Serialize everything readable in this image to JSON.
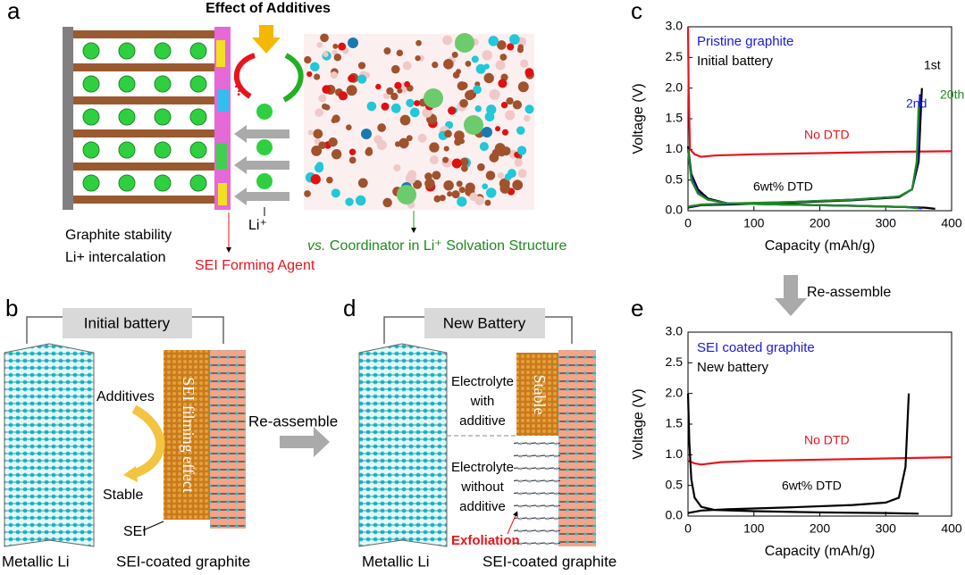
{
  "chart_data": [
    {
      "type": "line",
      "panel": "c",
      "xlabel": "Capacity (mAh/g)",
      "ylabel": "Voltage (V)",
      "xlim": [
        0,
        400
      ],
      "ylim": [
        0,
        3
      ],
      "xticks": [
        0,
        100,
        200,
        300,
        400
      ],
      "yticks": [
        {
          "value": 0,
          "label": "0.0"
        },
        0.5,
        {
          "value": 1,
          "label": "1.0"
        },
        1.5,
        {
          "value": 2,
          "label": "2.0"
        },
        2.5,
        {
          "value": 3,
          "label": "3.0"
        }
      ],
      "legend_text": [
        {
          "text": "Pristine graphite",
          "color": "#1a1adc"
        },
        {
          "text": "Initial battery",
          "color": "#000000"
        }
      ],
      "annotations": [
        "6wt% DTD"
      ],
      "series": [
        {
          "name": "No DTD",
          "color": "#e8141c",
          "x": [
            0,
            1,
            3,
            10,
            20,
            40,
            100,
            200,
            300,
            400
          ],
          "values": [
            3.0,
            2.0,
            1.0,
            0.92,
            0.88,
            0.9,
            0.92,
            0.94,
            0.96,
            0.97
          ]
        },
        {
          "name": "1st",
          "color": "#000000",
          "x": [
            0,
            5,
            15,
            30,
            60,
            150,
            250,
            330,
            360,
            375,
            null,
            0,
            20,
            60,
            150,
            250,
            320,
            340,
            350,
            355
          ],
          "values": [
            1.05,
            0.6,
            0.35,
            0.2,
            0.12,
            0.1,
            0.08,
            0.06,
            0.05,
            0.03,
            null,
            0.05,
            0.09,
            0.1,
            0.13,
            0.17,
            0.22,
            0.35,
            0.8,
            2.0
          ]
        },
        {
          "name": "2nd",
          "color": "#1a1adc",
          "x": [
            0,
            5,
            15,
            30,
            60,
            150,
            250,
            330,
            355,
            null,
            0,
            20,
            60,
            150,
            250,
            320,
            340,
            348,
            352
          ],
          "values": [
            1.0,
            0.55,
            0.3,
            0.18,
            0.12,
            0.1,
            0.08,
            0.06,
            0.04,
            null,
            0.06,
            0.1,
            0.11,
            0.14,
            0.18,
            0.23,
            0.35,
            0.8,
            1.9
          ]
        },
        {
          "name": "20th",
          "color": "#1f8a1f",
          "x": [
            0,
            5,
            15,
            30,
            60,
            150,
            250,
            330,
            350,
            null,
            0,
            20,
            60,
            150,
            250,
            320,
            340,
            347,
            350
          ],
          "values": [
            1.0,
            0.5,
            0.28,
            0.18,
            0.12,
            0.1,
            0.08,
            0.06,
            0.04,
            null,
            0.07,
            0.1,
            0.12,
            0.14,
            0.18,
            0.23,
            0.35,
            0.8,
            1.7
          ]
        }
      ]
    },
    {
      "type": "line",
      "panel": "e",
      "xlabel": "Capacity (mAh/g)",
      "ylabel": "Voltage (V)",
      "xlim": [
        0,
        400
      ],
      "ylim": [
        0,
        3
      ],
      "xticks": [
        0,
        100,
        200,
        300,
        400
      ],
      "yticks": [
        {
          "value": 0,
          "label": "0.0"
        },
        0.5,
        {
          "value": 1,
          "label": "1.0"
        },
        1.5,
        {
          "value": 2,
          "label": "2.0"
        },
        2.5,
        {
          "value": 3,
          "label": "3.0"
        }
      ],
      "legend_text": [
        {
          "text": "SEI coated graphite",
          "color": "#1a1adc"
        },
        {
          "text": "New battery",
          "color": "#000000"
        }
      ],
      "annotations": [],
      "series": [
        {
          "name": "No DTD",
          "color": "#e8141c",
          "x": [
            0,
            10,
            20,
            50,
            100,
            200,
            300,
            400
          ],
          "values": [
            0.9,
            0.86,
            0.84,
            0.88,
            0.9,
            0.92,
            0.94,
            0.96
          ]
        },
        {
          "name": "6wt% DTD",
          "color": "#000000",
          "x": [
            0,
            2,
            5,
            10,
            20,
            40,
            100,
            200,
            300,
            350,
            null,
            0,
            20,
            60,
            150,
            250,
            300,
            320,
            330,
            335
          ],
          "values": [
            2.0,
            1.2,
            0.6,
            0.3,
            0.15,
            0.1,
            0.08,
            0.06,
            0.05,
            0.04,
            null,
            0.05,
            0.09,
            0.11,
            0.14,
            0.18,
            0.22,
            0.3,
            0.8,
            2.0
          ]
        }
      ]
    }
  ],
  "diagram": {
    "labels": {
      "a": "a",
      "b": "b",
      "c": "c",
      "d": "d",
      "e": "e"
    },
    "a": {
      "title": "Effect of Additives",
      "question": "?",
      "li": "Li⁺",
      "stability": "Graphite stability",
      "intercalation": "Li+ intercalation",
      "sei_agent": "SEI Forming Agent",
      "vs": "vs.",
      "coordinator": "Coordinator in Li⁺ Solvation Structure"
    },
    "reassemble_ce": "Re-assemble",
    "reassemble_bd": "Re-assemble",
    "b": {
      "box": "Initial battery",
      "additives": "Additives",
      "stable": "Stable",
      "sei": "SEI",
      "sei_effect": "SEI filming effect",
      "anode": "Metallic Li",
      "cathode": "SEI-coated graphite"
    },
    "d": {
      "box": "New Battery",
      "with": [
        "Electrolyte",
        "with",
        "additive"
      ],
      "without": [
        "Electrolyte",
        "without",
        "additive"
      ],
      "exfoliation": "Exfoliation",
      "stable": "Stable",
      "anode": "Metallic Li",
      "cathode": "SEI-coated graphite"
    }
  }
}
